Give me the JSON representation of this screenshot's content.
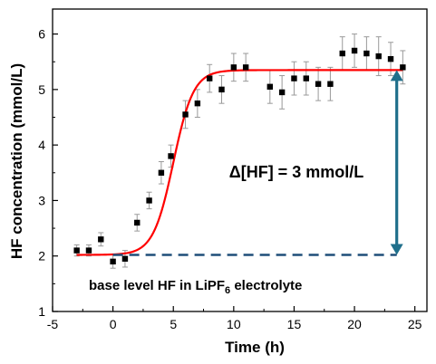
{
  "chart_data": {
    "type": "scatter",
    "xlabel": "Time (h)",
    "ylabel": "HF concentration (mmol/L)",
    "xlim": [
      -5,
      26
    ],
    "ylim": [
      1,
      6.45
    ],
    "xticks": [
      -5,
      0,
      5,
      10,
      15,
      20,
      25
    ],
    "yticks": [
      1,
      2,
      3,
      4,
      5,
      6
    ],
    "grid": false,
    "points": [
      {
        "x": -3,
        "y": 2.1,
        "err": 0.1
      },
      {
        "x": -2,
        "y": 2.1,
        "err": 0.1
      },
      {
        "x": -1,
        "y": 2.3,
        "err": 0.12
      },
      {
        "x": 0,
        "y": 1.9,
        "err": 0.12
      },
      {
        "x": 1,
        "y": 1.95,
        "err": 0.15
      },
      {
        "x": 2,
        "y": 2.6,
        "err": 0.15
      },
      {
        "x": 3,
        "y": 3.0,
        "err": 0.15
      },
      {
        "x": 4,
        "y": 3.5,
        "err": 0.2
      },
      {
        "x": 4.8,
        "y": 3.8,
        "err": 0.2
      },
      {
        "x": 6,
        "y": 4.55,
        "err": 0.25
      },
      {
        "x": 7,
        "y": 4.75,
        "err": 0.25
      },
      {
        "x": 8,
        "y": 5.2,
        "err": 0.25
      },
      {
        "x": 9,
        "y": 5.0,
        "err": 0.25
      },
      {
        "x": 10,
        "y": 5.4,
        "err": 0.25
      },
      {
        "x": 11,
        "y": 5.4,
        "err": 0.25
      },
      {
        "x": 13,
        "y": 5.05,
        "err": 0.3
      },
      {
        "x": 14,
        "y": 4.95,
        "err": 0.3
      },
      {
        "x": 15,
        "y": 5.2,
        "err": 0.3
      },
      {
        "x": 16,
        "y": 5.2,
        "err": 0.3
      },
      {
        "x": 17,
        "y": 5.1,
        "err": 0.3
      },
      {
        "x": 18,
        "y": 5.1,
        "err": 0.3
      },
      {
        "x": 19,
        "y": 5.65,
        "err": 0.3
      },
      {
        "x": 20,
        "y": 5.7,
        "err": 0.3
      },
      {
        "x": 21,
        "y": 5.65,
        "err": 0.3
      },
      {
        "x": 22,
        "y": 5.6,
        "err": 0.35
      },
      {
        "x": 23,
        "y": 5.55,
        "err": 0.3
      },
      {
        "x": 24,
        "y": 5.4,
        "err": 0.3
      }
    ],
    "fit_curve": {
      "type": "sigmoid",
      "y_base": 2.02,
      "y_top": 5.35,
      "x_mid": 5.0,
      "steepness": 1.2,
      "x_range": [
        -3,
        24
      ],
      "color": "#ff0000"
    },
    "baseline": {
      "y": 2.02,
      "x_range": [
        0,
        23.5
      ],
      "style": "dashed",
      "color": "#1f4e79"
    },
    "delta_arrow": {
      "x": 23.5,
      "y_from": 2.02,
      "y_to": 5.35,
      "color": "#1f6f8b"
    },
    "annotations": {
      "delta_label": "Δ[HF] = 3 mmol/L",
      "baseline_label_main": "base level HF in LiPF",
      "baseline_label_sub": "6",
      "baseline_label_end": " electrolyte"
    },
    "marker_color": "#000000",
    "errorbar_color": "#999999"
  }
}
